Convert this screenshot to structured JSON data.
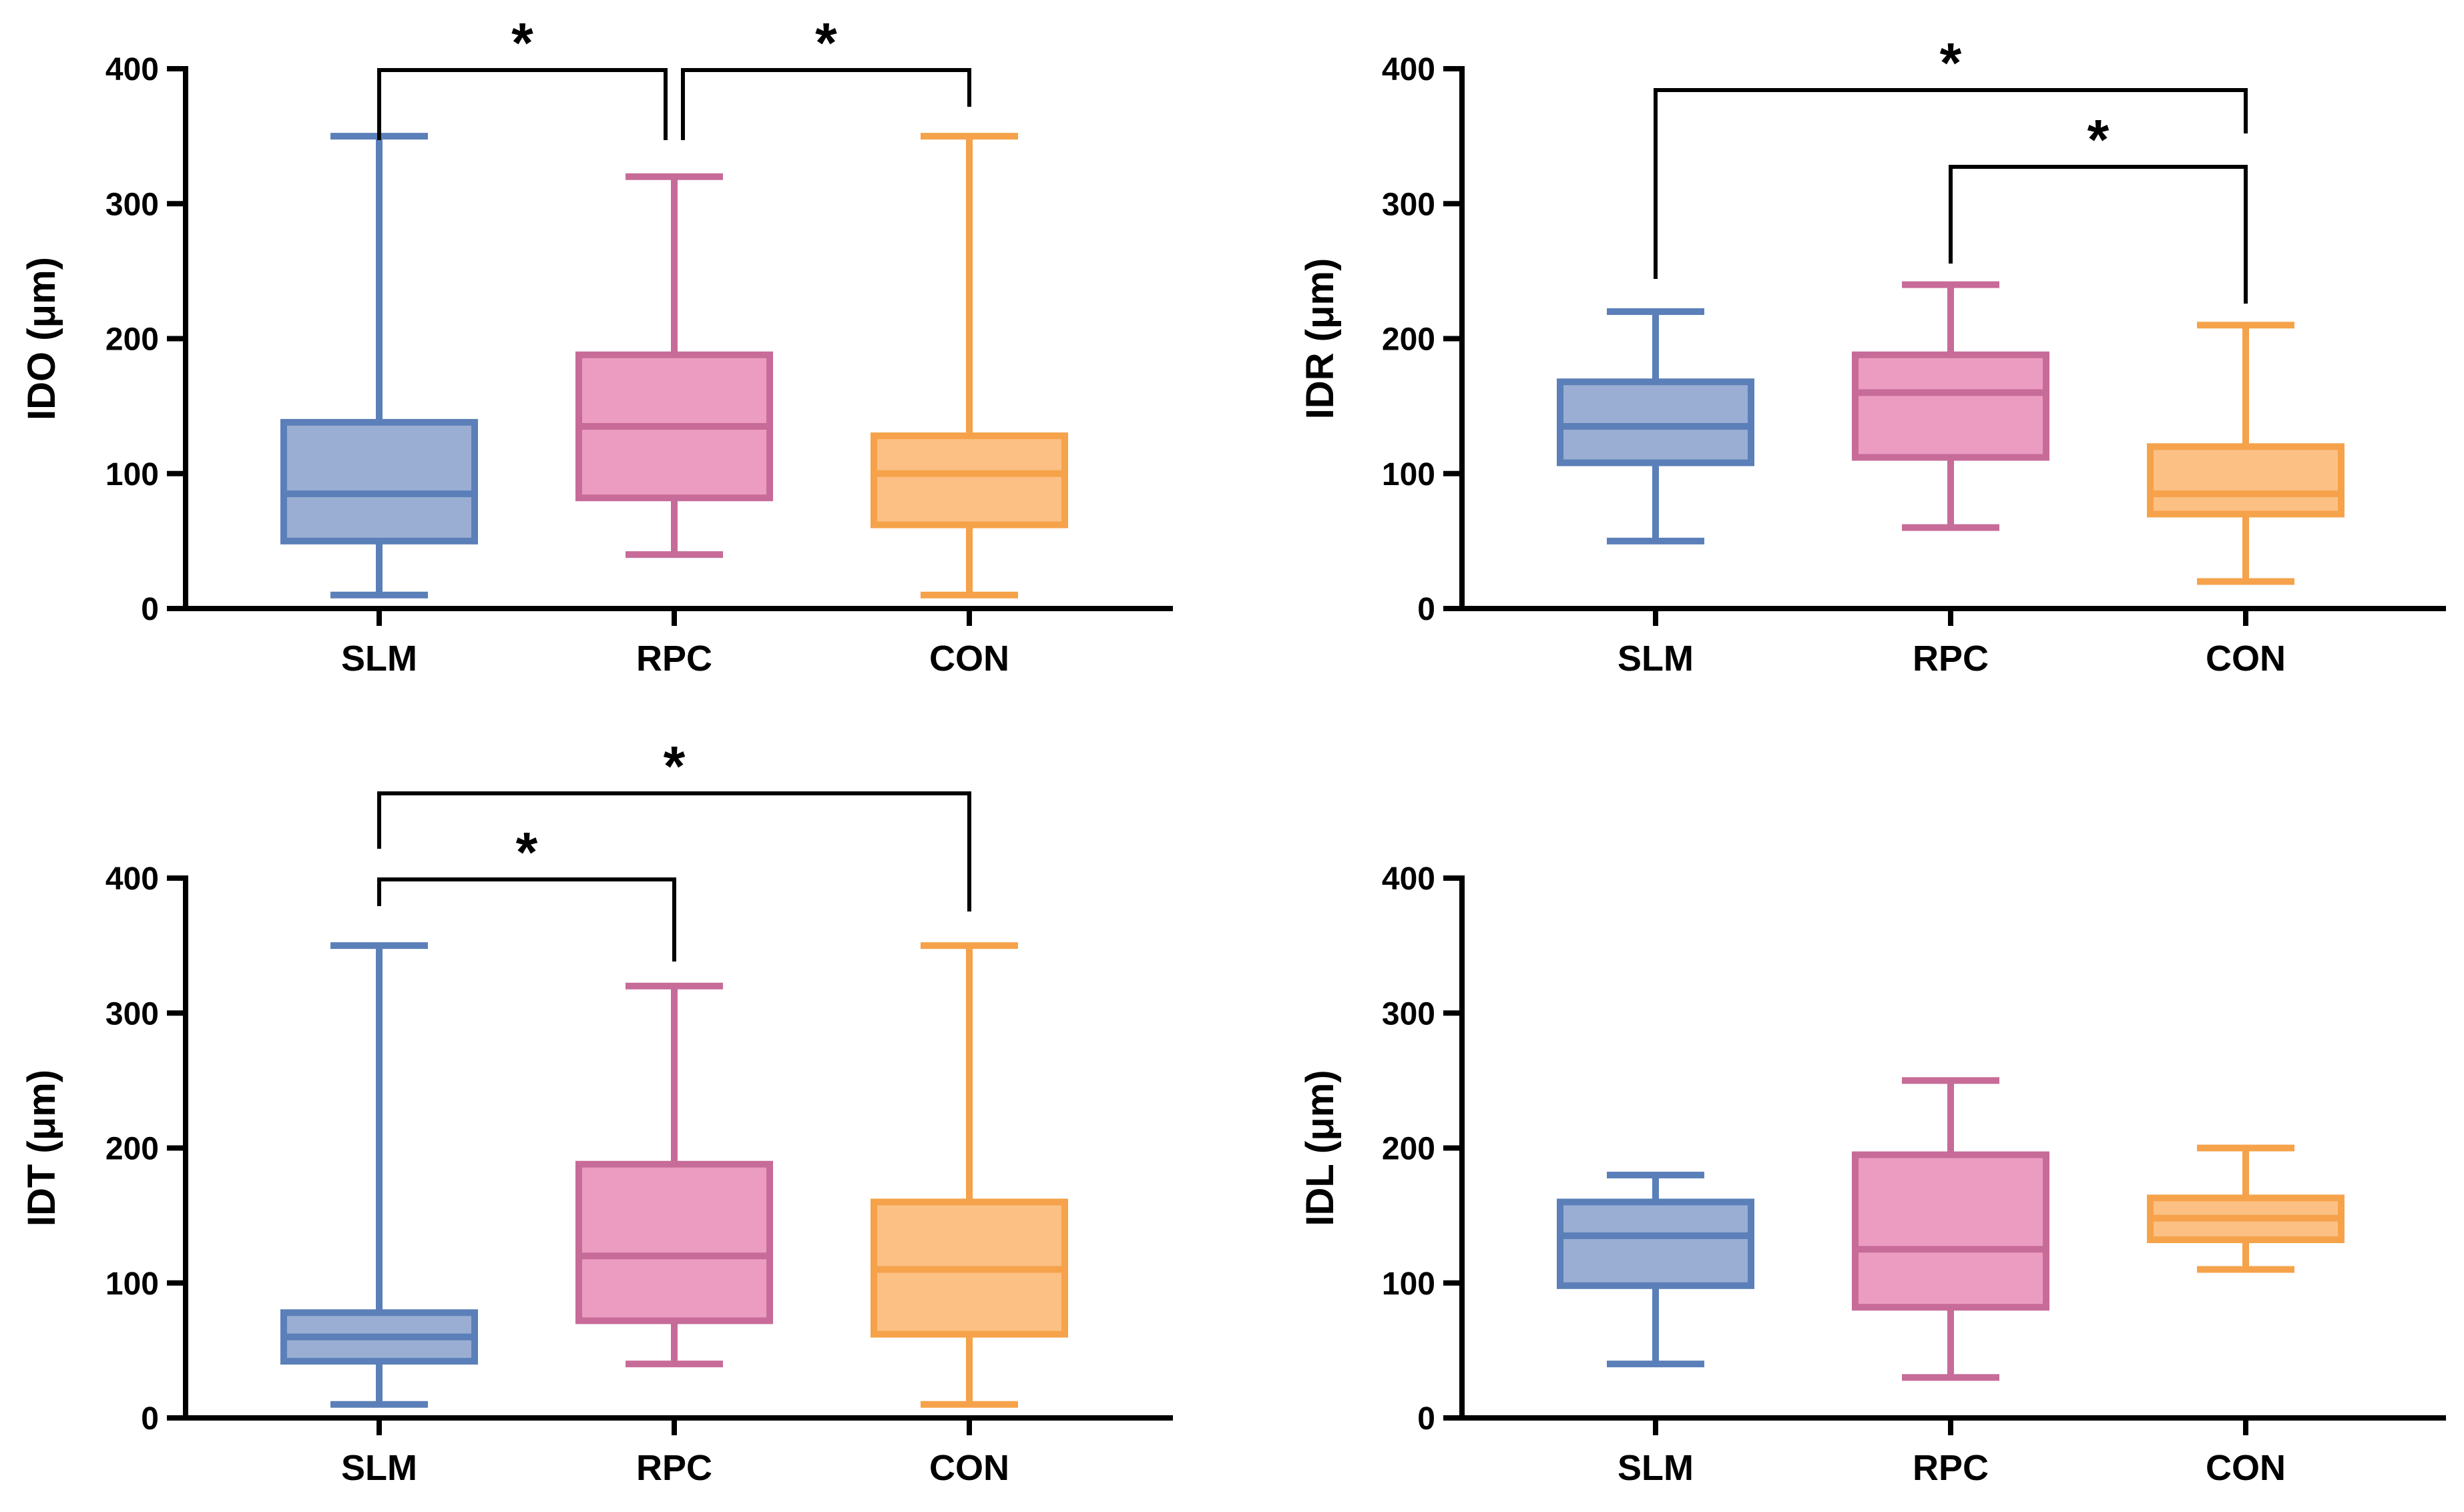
{
  "chart_data": [
    {
      "type": "box",
      "ylabel": "IDO (μm)",
      "ylim": [
        0,
        400
      ],
      "yticks": [
        0,
        100,
        200,
        300,
        400
      ],
      "categories": [
        "SLM",
        "RPC",
        "CON"
      ],
      "boxes": [
        {
          "category": "SLM",
          "min": 10,
          "q1": 50,
          "median": 85,
          "q3": 138,
          "max": 350
        },
        {
          "category": "RPC",
          "min": 40,
          "q1": 82,
          "median": 135,
          "q3": 188,
          "max": 320
        },
        {
          "category": "CON",
          "min": 10,
          "q1": 62,
          "median": 100,
          "q3": 128,
          "max": 350
        }
      ],
      "significance": [
        {
          "from": "SLM",
          "to": "RPC",
          "label": "*"
        },
        {
          "from": "RPC",
          "to": "CON",
          "label": "*"
        }
      ]
    },
    {
      "type": "box",
      "ylabel": "IDR (μm)",
      "ylim": [
        0,
        400
      ],
      "yticks": [
        0,
        100,
        200,
        300,
        400
      ],
      "categories": [
        "SLM",
        "RPC",
        "CON"
      ],
      "boxes": [
        {
          "category": "SLM",
          "min": 50,
          "q1": 108,
          "median": 135,
          "q3": 168,
          "max": 220
        },
        {
          "category": "RPC",
          "min": 60,
          "q1": 112,
          "median": 160,
          "q3": 188,
          "max": 240
        },
        {
          "category": "CON",
          "min": 20,
          "q1": 70,
          "median": 85,
          "q3": 120,
          "max": 210
        }
      ],
      "significance": [
        {
          "from": "SLM",
          "to": "CON",
          "label": "*"
        },
        {
          "from": "RPC",
          "to": "CON",
          "label": "*"
        }
      ]
    },
    {
      "type": "box",
      "ylabel": "IDT (μm)",
      "ylim": [
        0,
        400
      ],
      "yticks": [
        0,
        100,
        200,
        300,
        400
      ],
      "categories": [
        "SLM",
        "RPC",
        "CON"
      ],
      "boxes": [
        {
          "category": "SLM",
          "min": 10,
          "q1": 42,
          "median": 60,
          "q3": 78,
          "max": 350
        },
        {
          "category": "RPC",
          "min": 40,
          "q1": 72,
          "median": 120,
          "q3": 188,
          "max": 320
        },
        {
          "category": "CON",
          "min": 10,
          "q1": 62,
          "median": 110,
          "q3": 160,
          "max": 350
        }
      ],
      "significance": [
        {
          "from": "SLM",
          "to": "RPC",
          "label": "*"
        },
        {
          "from": "SLM",
          "to": "CON",
          "label": "*"
        }
      ]
    },
    {
      "type": "box",
      "ylabel": "IDL (μm)",
      "ylim": [
        0,
        400
      ],
      "yticks": [
        0,
        100,
        200,
        300,
        400
      ],
      "categories": [
        "SLM",
        "RPC",
        "CON"
      ],
      "boxes": [
        {
          "category": "SLM",
          "min": 40,
          "q1": 98,
          "median": 135,
          "q3": 160,
          "max": 180
        },
        {
          "category": "RPC",
          "min": 30,
          "q1": 82,
          "median": 125,
          "q3": 195,
          "max": 250
        },
        {
          "category": "CON",
          "min": 110,
          "q1": 132,
          "median": 148,
          "q3": 163,
          "max": 200
        }
      ],
      "significance": []
    }
  ],
  "colors": {
    "SLM": {
      "stroke": "#5b7fb8",
      "fill": "#9aaed3"
    },
    "RPC": {
      "stroke": "#c76b98",
      "fill": "#ec9cc0"
    },
    "CON": {
      "stroke": "#f5a24a",
      "fill": "#fcc084"
    },
    "axis": "#000000"
  }
}
